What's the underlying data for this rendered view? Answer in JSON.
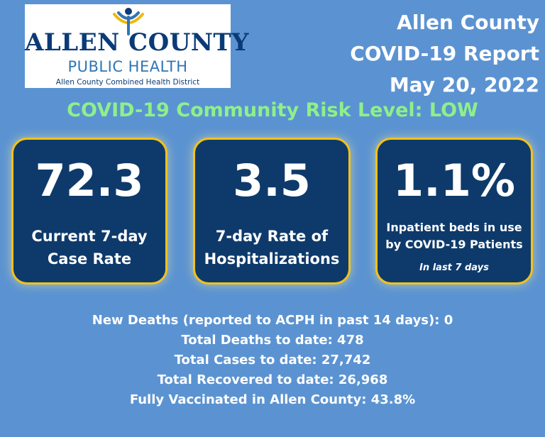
{
  "logo": {
    "name": "ALLEN COUNTY",
    "subtitle": "PUBLIC HEALTH",
    "district": "Allen County Combined Health District"
  },
  "report": {
    "line1": "Allen County",
    "line2": "COVID-19 Report",
    "line3": "May 20, 2022"
  },
  "risk_level": "COVID-19 Community Risk Level: LOW",
  "cards": [
    {
      "value": "72.3",
      "label_line1": "Current 7-day",
      "label_line2": "Case Rate"
    },
    {
      "value": "3.5",
      "label_line1": "7-day Rate of",
      "label_line2": "Hospitalizations"
    },
    {
      "value": "1.1%",
      "label_line1": "Inpatient beds in use",
      "label_line2": "by COVID-19 Patients",
      "note": "In last  7 days"
    }
  ],
  "summary": [
    "New Deaths (reported to ACPH in past 14 days): 0",
    "Total Deaths to date: 478",
    "Total Cases to date: 27,742",
    "Total Recovered to date: 26,968",
    "Fully Vaccinated in Allen County: 43.8%"
  ],
  "colors": {
    "background": "#5b93d2",
    "card_fill": "#0e3a6b",
    "card_border": "#f2c21b",
    "risk_text": "#8ef08a",
    "logo_navy": "#0b3b77",
    "logo_blue": "#2f75b5",
    "logo_gold": "#f2b705"
  },
  "icons": {
    "logo_mark": "person-figure-logo-icon"
  }
}
